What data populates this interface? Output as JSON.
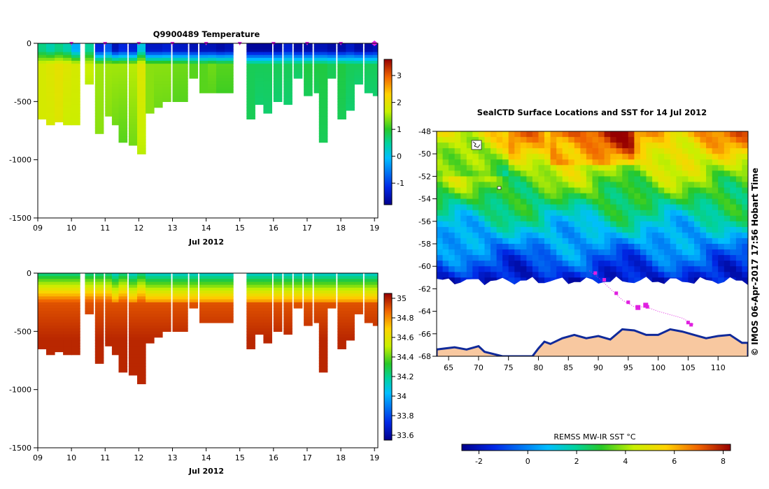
{
  "chart_data": [
    {
      "type": "heatmap",
      "title": "Q9900489  Temperature",
      "xlabel": "Jul 2012",
      "ylabel": "",
      "x_ticks": [
        "09",
        "10",
        "11",
        "12",
        "13",
        "14",
        "15",
        "16",
        "17",
        "18",
        "19"
      ],
      "y_ticks": [
        "0",
        "-500",
        "-1000",
        "-1500"
      ],
      "xlim": [
        9,
        19.1
      ],
      "ylim": [
        -1500,
        0
      ],
      "colorbar_ticks": [
        "3",
        "2",
        "1",
        "0",
        "-1"
      ],
      "colorbar_range": [
        -1.8,
        3.6
      ],
      "profile_markers_day": [
        10,
        11,
        12,
        13,
        14,
        15,
        16,
        17,
        18,
        19
      ],
      "profiles": [
        {
          "day": 9.0,
          "depth": 650,
          "surface": 0.6,
          "mid": 1.8,
          "deep": 1.8
        },
        {
          "day": 9.25,
          "depth": 700,
          "surface": 0.4,
          "mid": 1.9,
          "deep": 1.8
        },
        {
          "day": 9.5,
          "depth": 670,
          "surface": 0.6,
          "mid": 2.0,
          "deep": 1.9
        },
        {
          "day": 9.75,
          "depth": 690,
          "surface": 0.4,
          "mid": 1.9,
          "deep": 1.7
        },
        {
          "day": 10.0,
          "depth": 700,
          "surface": -0.2,
          "mid": 1.8,
          "deep": 1.7
        },
        {
          "day": 10.4,
          "depth": 350,
          "surface": 0.5,
          "mid": 1.7,
          "deep": 1.6
        },
        {
          "day": 10.7,
          "depth": 760,
          "surface": -1.2,
          "mid": 1.5,
          "deep": 1.4
        },
        {
          "day": 11.0,
          "depth": 620,
          "surface": -0.8,
          "mid": 1.5,
          "deep": 1.4
        },
        {
          "day": 11.2,
          "depth": 700,
          "surface": -1.5,
          "mid": 1.5,
          "deep": 1.3
        },
        {
          "day": 11.4,
          "depth": 850,
          "surface": -1.2,
          "mid": 1.5,
          "deep": 1.2
        },
        {
          "day": 11.7,
          "depth": 870,
          "surface": -1.3,
          "mid": 1.6,
          "deep": 1.3
        },
        {
          "day": 11.95,
          "depth": 950,
          "surface": 0.1,
          "mid": 1.9,
          "deep": 1.6
        },
        {
          "day": 12.2,
          "depth": 600,
          "surface": -1.4,
          "mid": 1.4,
          "deep": 1.4
        },
        {
          "day": 12.45,
          "depth": 540,
          "surface": -1.4,
          "mid": 1.4,
          "deep": 1.3
        },
        {
          "day": 12.7,
          "depth": 500,
          "surface": -1.3,
          "mid": 1.4,
          "deep": 1.3
        },
        {
          "day": 13.0,
          "depth": 490,
          "surface": -1.4,
          "mid": 1.3,
          "deep": 1.2
        },
        {
          "day": 13.2,
          "depth": 480,
          "surface": -1.4,
          "mid": 1.3,
          "deep": 1.2
        },
        {
          "day": 13.5,
          "depth": 300,
          "surface": -1.5,
          "mid": 1.2,
          "deep": 1.2
        },
        {
          "day": 13.8,
          "depth": 420,
          "surface": -1.5,
          "mid": 1.2,
          "deep": 1.2
        },
        {
          "day": 14.05,
          "depth": 420,
          "surface": -1.5,
          "mid": 1.3,
          "deep": 1.2
        },
        {
          "day": 14.3,
          "depth": 420,
          "surface": -1.6,
          "mid": 1.2,
          "deep": 1.1
        },
        {
          "day": 14.55,
          "depth": 420,
          "surface": -1.5,
          "mid": 1.2,
          "deep": 1.1
        },
        {
          "day": 15.2,
          "depth": 630,
          "surface": -1.7,
          "mid": 0.8,
          "deep": 0.8
        },
        {
          "day": 15.45,
          "depth": 520,
          "surface": -1.7,
          "mid": 0.8,
          "deep": 0.7
        },
        {
          "day": 15.7,
          "depth": 600,
          "surface": -1.7,
          "mid": 0.8,
          "deep": 0.7
        },
        {
          "day": 16.0,
          "depth": 480,
          "surface": -1.6,
          "mid": 0.8,
          "deep": 0.7
        },
        {
          "day": 16.3,
          "depth": 520,
          "surface": -1.3,
          "mid": 0.8,
          "deep": 0.7
        },
        {
          "day": 16.6,
          "depth": 300,
          "surface": -1.6,
          "mid": 0.8,
          "deep": 0.7
        },
        {
          "day": 16.9,
          "depth": 430,
          "surface": -1.6,
          "mid": 0.9,
          "deep": 0.8
        },
        {
          "day": 17.2,
          "depth": 420,
          "surface": -1.5,
          "mid": 0.9,
          "deep": 0.8
        },
        {
          "day": 17.35,
          "depth": 830,
          "surface": -1.5,
          "mid": 0.9,
          "deep": 0.8
        },
        {
          "day": 17.6,
          "depth": 300,
          "surface": -1.6,
          "mid": 0.8,
          "deep": 0.8
        },
        {
          "day": 17.9,
          "depth": 630,
          "surface": -1.6,
          "mid": 0.9,
          "deep": 0.8
        },
        {
          "day": 18.15,
          "depth": 570,
          "surface": -1.4,
          "mid": 0.8,
          "deep": 0.7
        },
        {
          "day": 18.4,
          "depth": 330,
          "surface": -1.6,
          "mid": 0.8,
          "deep": 0.7
        },
        {
          "day": 18.7,
          "depth": 420,
          "surface": -1.6,
          "mid": 0.8,
          "deep": 0.7
        },
        {
          "day": 18.95,
          "depth": 450,
          "surface": -1.5,
          "mid": 0.8,
          "deep": 0.7
        }
      ]
    },
    {
      "type": "heatmap",
      "title": "",
      "xlabel": "Jul 2012",
      "ylabel": "",
      "x_ticks": [
        "09",
        "10",
        "11",
        "12",
        "13",
        "14",
        "15",
        "16",
        "17",
        "18",
        "19"
      ],
      "y_ticks": [
        "0",
        "-500",
        "-1000",
        "-1500"
      ],
      "xlim": [
        9,
        19.1
      ],
      "ylim": [
        -1500,
        0
      ],
      "colorbar_ticks": [
        "35",
        "34.8",
        "34.6",
        "34.4",
        "34.2",
        "34",
        "33.8",
        "33.6"
      ],
      "colorbar_range": [
        33.55,
        35.05
      ],
      "profiles_ref": 0
    },
    {
      "type": "heatmap",
      "title": "SealCTD Surface Locations and SST for 14 Jul 2012",
      "xlabel": "",
      "ylabel": "",
      "x_ticks": [
        "65",
        "70",
        "75",
        "80",
        "85",
        "90",
        "95",
        "100",
        "105",
        "110"
      ],
      "y_ticks": [
        "-48",
        "-50",
        "-52",
        "-54",
        "-56",
        "-58",
        "-60",
        "-62",
        "-64",
        "-66",
        "-68"
      ],
      "xlim": [
        63,
        115
      ],
      "ylim": [
        -68,
        -48
      ],
      "colorbar_label": "REMSS MW-IR SST °C",
      "colorbar_ticks": [
        "-2",
        "0",
        "2",
        "4",
        "6",
        "8"
      ],
      "colorbar_range": [
        -2.7,
        8.3
      ],
      "ice_edge_lat": -61.3,
      "coast": [
        [
          63,
          -67.4
        ],
        [
          66,
          -67.2
        ],
        [
          68,
          -67.4
        ],
        [
          70,
          -67.1
        ],
        [
          71,
          -67.6
        ],
        [
          74,
          -68
        ],
        [
          79,
          -68
        ],
        [
          80,
          -67.3
        ],
        [
          81,
          -66.7
        ],
        [
          82,
          -66.9
        ],
        [
          84,
          -66.4
        ],
        [
          86,
          -66.1
        ],
        [
          88,
          -66.4
        ],
        [
          90,
          -66.2
        ],
        [
          92,
          -66.5
        ],
        [
          94,
          -65.6
        ],
        [
          96,
          -65.7
        ],
        [
          98,
          -66.1
        ],
        [
          100,
          -66.1
        ],
        [
          102,
          -65.6
        ],
        [
          104,
          -65.8
        ],
        [
          106,
          -66.1
        ],
        [
          108,
          -66.4
        ],
        [
          110,
          -66.2
        ],
        [
          112,
          -66.1
        ],
        [
          114,
          -66.8
        ],
        [
          115,
          -66.8
        ]
      ],
      "track": [
        [
          88.5,
          -60.4
        ],
        [
          90,
          -61
        ],
        [
          92,
          -62
        ],
        [
          94,
          -63
        ],
        [
          96,
          -63.6
        ],
        [
          98,
          -63.6
        ],
        [
          100,
          -64
        ],
        [
          104,
          -64.6
        ],
        [
          106,
          -65.2
        ]
      ],
      "seal_positions": [
        [
          89.5,
          -60.6
        ],
        [
          91,
          -61.2
        ],
        [
          93,
          -62.4
        ],
        [
          95,
          -63.2
        ],
        [
          96.5,
          -63.6
        ],
        [
          97.8,
          -63.4
        ],
        [
          98.2,
          -63.6
        ],
        [
          105,
          -65.0
        ],
        [
          105.5,
          -65.2
        ]
      ]
    }
  ],
  "credit": "© IMOS 06-Apr-2017 17:56 Hobart Time",
  "colors": {
    "ocean_low": "#1a2aa8",
    "ocean_high": "#c02a10",
    "land": "#f8c8a0",
    "coast_blue": "#102a9a",
    "seal_marker": "#e020e0"
  }
}
